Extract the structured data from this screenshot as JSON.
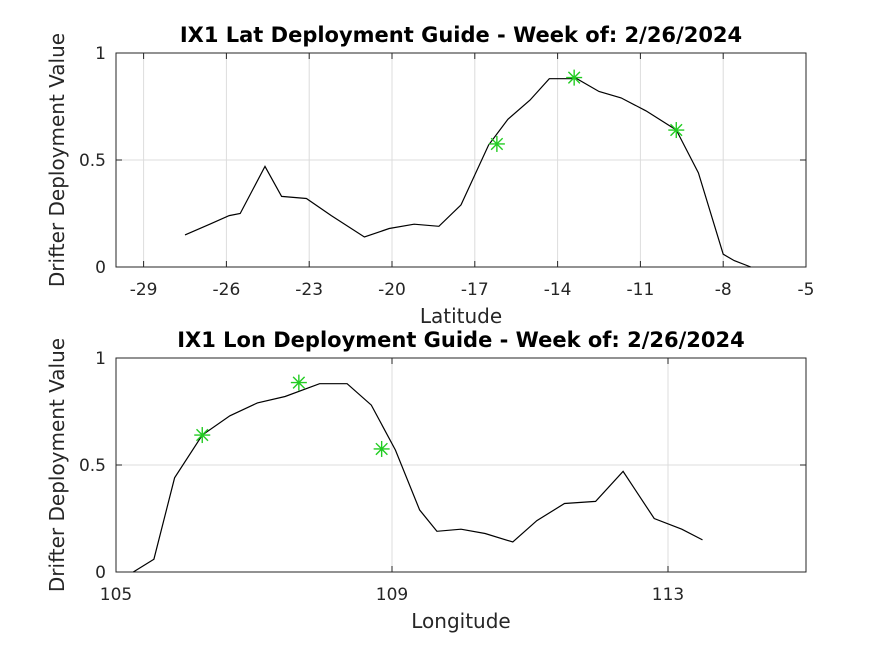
{
  "chart_data": [
    {
      "type": "line",
      "title": "IX1 Lat Deployment Guide - Week of: 2/26/2024",
      "xlabel": "Latitude",
      "ylabel": "Drifter Deployment Value",
      "xlim": [
        -30,
        -5
      ],
      "ylim": [
        0,
        1
      ],
      "xticks": [
        -29,
        -26,
        -23,
        -20,
        -17,
        -14,
        -11,
        -8,
        -5
      ],
      "yticks": [
        0,
        0.5,
        1
      ],
      "ytick_labels": [
        "0",
        "0.5",
        "1"
      ],
      "grid": true,
      "series_color": "#000000",
      "marker_color": "#22cc22",
      "x": [
        -27.5,
        -26.6,
        -25.9,
        -25.5,
        -24.6,
        -24.0,
        -23.1,
        -22.2,
        -21.0,
        -20.1,
        -19.2,
        -18.3,
        -17.5,
        -16.5,
        -15.8,
        -15.0,
        -14.3,
        -13.3,
        -12.5,
        -11.7,
        -10.8,
        -9.7,
        -8.9,
        -8.0,
        -7.6,
        -7.0
      ],
      "y": [
        0.15,
        0.2,
        0.24,
        0.25,
        0.47,
        0.33,
        0.32,
        0.24,
        0.14,
        0.18,
        0.2,
        0.19,
        0.29,
        0.57,
        0.69,
        0.78,
        0.88,
        0.88,
        0.82,
        0.79,
        0.73,
        0.64,
        0.44,
        0.06,
        0.03,
        0.0
      ],
      "markers": {
        "x": [
          -16.2,
          -13.4,
          -9.7
        ],
        "y": [
          0.575,
          0.885,
          0.64
        ]
      }
    },
    {
      "type": "line",
      "title": "IX1 Lon Deployment Guide - Week of: 2/26/2024",
      "xlabel": "Longitude",
      "ylabel": "Drifter Deployment Value",
      "xlim": [
        105,
        115
      ],
      "ylim": [
        0,
        1
      ],
      "xticks": [
        105,
        109,
        113
      ],
      "yticks": [
        0,
        0.5,
        1
      ],
      "ytick_labels": [
        "0",
        "0.5",
        "1"
      ],
      "grid": true,
      "series_color": "#000000",
      "marker_color": "#22cc22",
      "x": [
        105.25,
        105.55,
        105.85,
        106.25,
        106.65,
        107.05,
        107.45,
        107.95,
        108.35,
        108.7,
        109.05,
        109.4,
        109.65,
        110.0,
        110.35,
        110.75,
        111.1,
        111.5,
        111.95,
        112.35,
        112.8,
        113.2,
        113.5
      ],
      "y": [
        0.0,
        0.06,
        0.44,
        0.64,
        0.73,
        0.79,
        0.82,
        0.88,
        0.88,
        0.78,
        0.57,
        0.29,
        0.19,
        0.2,
        0.18,
        0.14,
        0.24,
        0.32,
        0.33,
        0.47,
        0.25,
        0.2,
        0.15
      ],
      "markers": {
        "x": [
          106.25,
          107.65,
          108.85
        ],
        "y": [
          0.64,
          0.885,
          0.575
        ]
      }
    }
  ]
}
